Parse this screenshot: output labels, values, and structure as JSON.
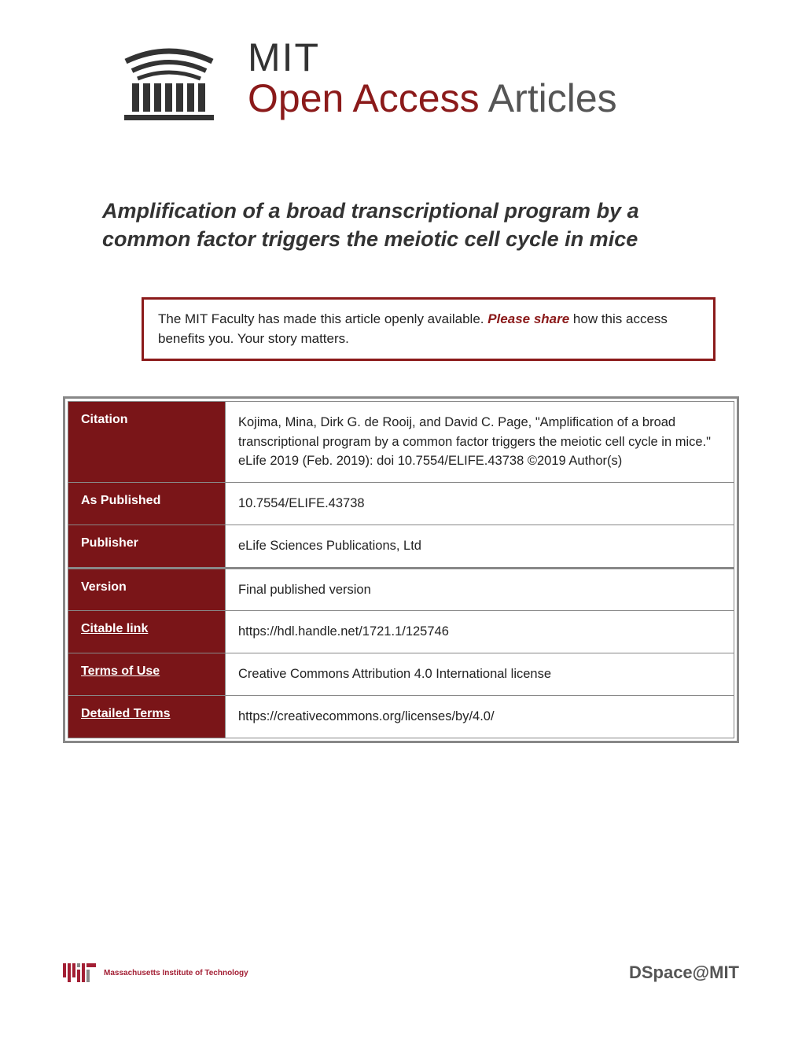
{
  "header": {
    "line1": "MIT",
    "line2_bold": "Open Access",
    "line2_light": " Articles"
  },
  "title": "Amplification of a broad transcriptional program by a common factor triggers the meiotic cell cycle in mice",
  "notice": {
    "text1": "The MIT Faculty has made this article openly available. ",
    "link": "Please share",
    "text2": " how this access benefits you. Your story matters."
  },
  "metadata": [
    {
      "label": "Citation",
      "value": "Kojima, Mina, Dirk G. de Rooij, and David C. Page, \"Amplification of a broad transcriptional program by a common factor triggers the meiotic cell cycle in mice.\" eLife 2019 (Feb. 2019): doi 10.7554/ELIFE.43738 ©2019 Author(s)",
      "link": false,
      "thick": false
    },
    {
      "label": "As Published",
      "value": "10.7554/ELIFE.43738",
      "link": false,
      "thick": false
    },
    {
      "label": "Publisher",
      "value": "eLife Sciences Publications, Ltd",
      "link": false,
      "thick": true
    },
    {
      "label": "Version",
      "value": "Final published version",
      "link": false,
      "thick": false
    },
    {
      "label": "Citable link",
      "value": "https://hdl.handle.net/1721.1/125746",
      "link": true,
      "thick": false
    },
    {
      "label": "Terms of Use",
      "value": "Creative Commons Attribution 4.0 International license",
      "link": true,
      "thick": false
    },
    {
      "label": "Detailed Terms",
      "value": "https://creativecommons.org/licenses/by/4.0/",
      "link": true,
      "thick": false
    }
  ],
  "footer": {
    "left": "Massachusetts Institute of Technology",
    "right": "DSpace@MIT"
  },
  "colors": {
    "maroon": "#8b1a1a",
    "dark_maroon": "#7a1518",
    "mit_red": "#a31f34"
  }
}
